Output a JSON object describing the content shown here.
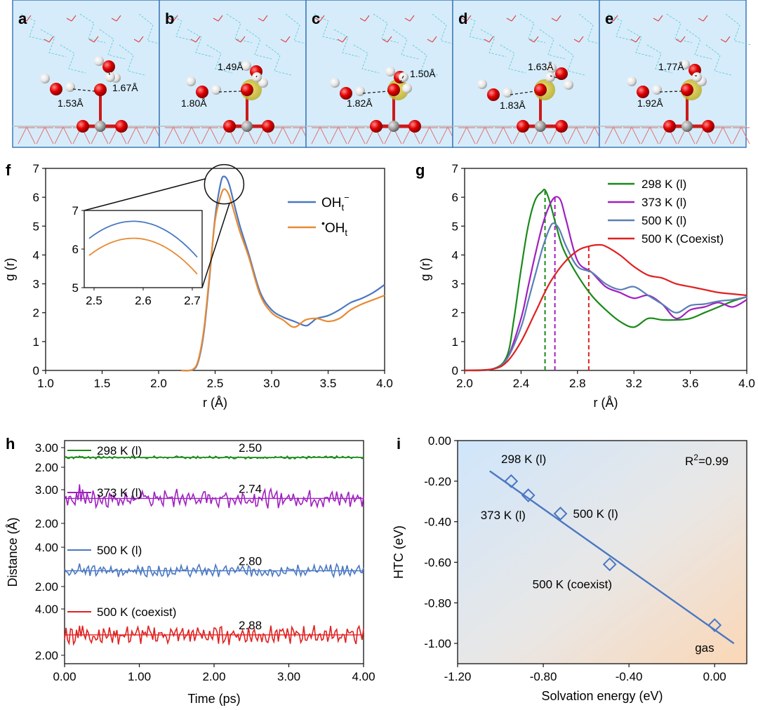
{
  "panels": {
    "a": "a",
    "b": "b",
    "c": "c",
    "d": "d",
    "e": "e",
    "f": "f",
    "g": "g",
    "h": "h",
    "i": "i"
  },
  "structures": [
    {
      "label": "a",
      "distances": [
        "1.67Å",
        "1.53Å"
      ]
    },
    {
      "label": "b",
      "distances": [
        "1.49Å",
        "1.80Å"
      ]
    },
    {
      "label": "c",
      "distances": [
        "1.50Å",
        "1.82Å"
      ]
    },
    {
      "label": "d",
      "distances": [
        "1.63Å",
        "1.83Å"
      ]
    },
    {
      "label": "e",
      "distances": [
        "1.77Å",
        "1.92Å"
      ]
    }
  ],
  "colors": {
    "blue": "#4a78c2",
    "orange": "#e88a33",
    "green": "#1a8a1a",
    "purple": "#a020c0",
    "red": "#e02020",
    "slate": "#5a7fb5"
  },
  "chart_data": [
    {
      "panel": "f",
      "type": "line",
      "xlabel": "r (Å)",
      "ylabel": "g (r)",
      "xlim": [
        1.0,
        4.0
      ],
      "ylim": [
        0,
        7
      ],
      "xticks": [
        "1.0",
        "1.5",
        "2.0",
        "2.5",
        "3.0",
        "3.5",
        "4.0"
      ],
      "yticks": [
        "0",
        "1",
        "2",
        "3",
        "4",
        "5",
        "6",
        "7"
      ],
      "legend": "top-right",
      "legend_labels": {
        "oh_anion": "OH",
        "oh_radical": "OH"
      },
      "series": [
        {
          "name": "OHt−",
          "color": "#4a78c2",
          "x": [
            2.2,
            2.3,
            2.35,
            2.4,
            2.45,
            2.5,
            2.55,
            2.58,
            2.62,
            2.66,
            2.72,
            2.8,
            2.9,
            3.0,
            3.1,
            3.2,
            3.3,
            3.35,
            3.4,
            3.5,
            3.6,
            3.7,
            3.8,
            3.9,
            4.0
          ],
          "y": [
            0,
            0.02,
            0.3,
            1.3,
            3.2,
            5.3,
            6.5,
            6.72,
            6.5,
            5.9,
            5.0,
            4.0,
            2.7,
            2.1,
            1.85,
            1.7,
            1.55,
            1.65,
            1.8,
            1.9,
            2.1,
            2.35,
            2.5,
            2.7,
            2.97
          ]
        },
        {
          "name": "•OHt",
          "color": "#e88a33",
          "x": [
            2.2,
            2.3,
            2.35,
            2.4,
            2.45,
            2.5,
            2.55,
            2.58,
            2.62,
            2.66,
            2.72,
            2.8,
            2.9,
            3.0,
            3.1,
            3.2,
            3.3,
            3.4,
            3.5,
            3.6,
            3.7,
            3.8,
            3.9,
            4.0
          ],
          "y": [
            0,
            0.03,
            0.35,
            1.4,
            3.3,
            5.2,
            6.05,
            6.28,
            6.1,
            5.6,
            4.8,
            3.9,
            2.6,
            2.0,
            1.75,
            1.5,
            1.75,
            1.8,
            1.7,
            1.8,
            2.1,
            2.3,
            2.45,
            2.6
          ]
        }
      ],
      "inset": {
        "xlim": [
          2.48,
          2.72
        ],
        "ylim": [
          5,
          7
        ],
        "xticks": [
          "2.5",
          "2.6",
          "2.7"
        ],
        "yticks": [
          "5",
          "6",
          "7"
        ]
      }
    },
    {
      "panel": "g",
      "type": "line",
      "xlabel": "r (Å)",
      "ylabel": "g (r)",
      "xlim": [
        2.0,
        4.0
      ],
      "ylim": [
        0,
        7
      ],
      "xticks": [
        "2.0",
        "2.4",
        "2.8",
        "3.2",
        "3.6",
        "4.0"
      ],
      "yticks": [
        "0",
        "1",
        "2",
        "3",
        "4",
        "5",
        "6",
        "7"
      ],
      "legend": "top-right",
      "vlines": [
        {
          "x": 2.57,
          "color": "#1a8a1a"
        },
        {
          "x": 2.64,
          "color": "#a020c0"
        },
        {
          "x": 2.88,
          "color": "#e02020"
        }
      ],
      "series": [
        {
          "name": "298 K (l)",
          "color": "#1a8a1a",
          "x": [
            2.0,
            2.2,
            2.3,
            2.35,
            2.4,
            2.45,
            2.5,
            2.55,
            2.57,
            2.6,
            2.65,
            2.7,
            2.8,
            2.9,
            3.0,
            3.1,
            3.2,
            3.3,
            3.4,
            3.5,
            3.6,
            3.7,
            3.8,
            3.9,
            4.0
          ],
          "y": [
            0,
            0.05,
            0.5,
            1.8,
            3.5,
            5.0,
            5.9,
            6.2,
            6.25,
            5.9,
            5.0,
            4.2,
            3.3,
            2.6,
            2.1,
            1.7,
            1.5,
            1.8,
            1.75,
            1.75,
            1.8,
            2.0,
            2.2,
            2.4,
            2.55
          ]
        },
        {
          "name": "373 K (l)",
          "color": "#a020c0",
          "x": [
            2.0,
            2.2,
            2.3,
            2.4,
            2.45,
            2.5,
            2.55,
            2.6,
            2.64,
            2.68,
            2.72,
            2.8,
            2.9,
            3.0,
            3.1,
            3.2,
            3.3,
            3.4,
            3.5,
            3.6,
            3.7,
            3.8,
            3.9,
            4.0
          ],
          "y": [
            0,
            0.05,
            0.4,
            1.8,
            2.9,
            4.0,
            5.0,
            5.7,
            6.0,
            5.9,
            5.2,
            3.8,
            3.4,
            2.9,
            2.7,
            2.5,
            2.6,
            2.3,
            1.8,
            2.1,
            2.2,
            2.35,
            2.2,
            2.45
          ]
        },
        {
          "name": "500 K (l)",
          "color": "#5a7fb5",
          "x": [
            2.0,
            2.2,
            2.3,
            2.4,
            2.45,
            2.5,
            2.55,
            2.6,
            2.63,
            2.67,
            2.72,
            2.8,
            2.9,
            3.0,
            3.1,
            3.2,
            3.3,
            3.4,
            3.5,
            3.6,
            3.7,
            3.8,
            3.9,
            4.0
          ],
          "y": [
            0,
            0.05,
            0.4,
            1.5,
            2.4,
            3.3,
            4.2,
            4.9,
            5.1,
            4.9,
            4.3,
            3.6,
            3.4,
            3.0,
            2.8,
            2.9,
            2.6,
            2.3,
            2.0,
            2.25,
            2.3,
            2.4,
            2.45,
            2.55
          ]
        },
        {
          "name": "500 K (Coexist)",
          "color": "#e02020",
          "x": [
            2.0,
            2.2,
            2.3,
            2.4,
            2.5,
            2.6,
            2.7,
            2.8,
            2.88,
            2.95,
            3.0,
            3.1,
            3.2,
            3.3,
            3.4,
            3.5,
            3.6,
            3.7,
            3.8,
            3.9,
            4.0
          ],
          "y": [
            0,
            0.05,
            0.3,
            1.0,
            2.0,
            3.0,
            3.7,
            4.15,
            4.3,
            4.35,
            4.3,
            4.0,
            3.6,
            3.3,
            3.2,
            3.0,
            2.9,
            2.8,
            2.7,
            2.65,
            2.6
          ]
        }
      ]
    },
    {
      "panel": "h",
      "type": "line",
      "xlabel": "Time (ps)",
      "ylabel": "Distance (Å)",
      "xlim": [
        0,
        4
      ],
      "xticks": [
        "0.00",
        "1.00",
        "2.00",
        "3.00",
        "4.00"
      ],
      "traces": [
        {
          "name": "298 K (l)",
          "color": "#1a8a1a",
          "mean": 2.5,
          "mean_label": "2.50",
          "ticks": [
            "3.00",
            "2.00"
          ],
          "amplitude": 0.08
        },
        {
          "name": "373 K (l)",
          "color": "#a020c0",
          "mean": 2.74,
          "mean_label": "2.74",
          "ticks": [
            "3.00",
            "2.00"
          ],
          "amplitude": 0.3
        },
        {
          "name": "500 K (l)",
          "color": "#4a78c2",
          "mean": 2.8,
          "mean_label": "2.80",
          "ticks": [
            "4.00",
            "2.00"
          ],
          "amplitude": 0.35
        },
        {
          "name": "500 K (coexist)",
          "color": "#e02020",
          "mean": 2.88,
          "mean_label": "2.88",
          "ticks": [
            "4.00",
            "2.00"
          ],
          "amplitude": 0.45
        }
      ]
    },
    {
      "panel": "i",
      "type": "scatter",
      "xlabel": "Solvation energy (eV)",
      "ylabel": "HTC (eV)",
      "xlim": [
        -1.2,
        0.15
      ],
      "ylim": [
        -1.1,
        0.0
      ],
      "xticks": [
        "-1.20",
        "-0.80",
        "-0.40",
        "0.00"
      ],
      "yticks": [
        "0.00",
        "-0.20",
        "-0.40",
        "-0.60",
        "-0.80",
        "-1.00"
      ],
      "annotation": "R",
      "annotation_sup": "2",
      "annotation_value": "=0.99",
      "points": [
        {
          "label": "298 K (l)",
          "x": -0.95,
          "y": -0.2
        },
        {
          "label": "373 K (l)",
          "x": -0.87,
          "y": -0.27
        },
        {
          "label": "500 K (l)",
          "x": -0.72,
          "y": -0.36
        },
        {
          "label": "500 K (coexist)",
          "x": -0.49,
          "y": -0.61
        },
        {
          "label": "gas",
          "x": 0.0,
          "y": -0.91
        }
      ],
      "fit": {
        "x": [
          -1.05,
          0.09
        ],
        "y": [
          -0.15,
          -1.0
        ]
      },
      "color": "#4a78c2"
    }
  ]
}
